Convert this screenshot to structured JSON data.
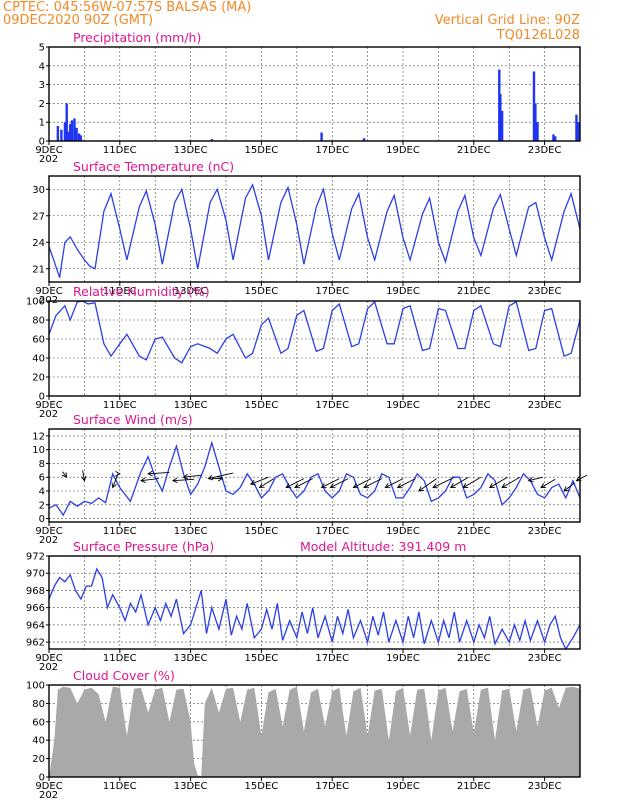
{
  "header": {
    "line1": "CPTEC:   045:56W-07:57S   BALSAS (MA)",
    "line2": "09DEC2020 90Z (GMT)",
    "grid_note": "Vertical Grid Line: 90Z",
    "run_code": "TQ0126L028"
  },
  "colors": {
    "header": "#f08a28",
    "panel_title": "#e0168f",
    "series": "#2b3fe6",
    "bars": "#1f35f0",
    "cloud": "#a9a9a9",
    "arrow": "#000000"
  },
  "x_axis": {
    "ticks": [
      "9DEC",
      "11DEC",
      "13DEC",
      "15DEC",
      "17DEC",
      "19DEC",
      "21DEC",
      "23DEC"
    ],
    "tick_days": [
      0,
      2,
      4,
      6,
      8,
      10,
      12,
      14
    ],
    "range_days": [
      0,
      15
    ],
    "year_fragment": "202"
  },
  "chart_data": [
    {
      "type": "bar",
      "title": "Precipitation  (mm/h)",
      "ylim": [
        0,
        5
      ],
      "yticks": [
        0,
        1,
        2,
        3,
        4,
        5
      ],
      "x": [
        0.25,
        0.35,
        0.45,
        0.5,
        0.55,
        0.6,
        0.65,
        0.72,
        0.78,
        0.85,
        0.9,
        4.6,
        7.7,
        8.9,
        12.72,
        12.75,
        12.8,
        13.7,
        13.74,
        13.8,
        14.25,
        14.3,
        14.9,
        14.95
      ],
      "values": [
        0.8,
        0.6,
        1.0,
        2.0,
        0.5,
        0.9,
        1.1,
        1.2,
        0.7,
        0.4,
        0.3,
        0.1,
        0.45,
        0.15,
        3.8,
        2.5,
        1.6,
        3.7,
        2.0,
        1.0,
        0.35,
        0.25,
        1.4,
        1.0
      ]
    },
    {
      "type": "line",
      "title": "Surface Temperature (nC)",
      "ylim": [
        19.5,
        31.5
      ],
      "yticks": [
        21,
        24,
        27,
        30
      ],
      "x": [
        0,
        0.15,
        0.3,
        0.45,
        0.6,
        0.8,
        1.0,
        1.15,
        1.3,
        1.55,
        1.75,
        2.0,
        2.2,
        2.55,
        2.75,
        3.0,
        3.2,
        3.55,
        3.75,
        4.0,
        4.2,
        4.55,
        4.75,
        5.0,
        5.2,
        5.55,
        5.75,
        6.0,
        6.2,
        6.55,
        6.75,
        7.0,
        7.2,
        7.55,
        7.75,
        8.0,
        8.2,
        8.55,
        8.75,
        9.0,
        9.2,
        9.55,
        9.75,
        10.0,
        10.2,
        10.55,
        10.75,
        11.0,
        11.2,
        11.55,
        11.75,
        12.0,
        12.2,
        12.55,
        12.75,
        13.0,
        13.2,
        13.55,
        13.75,
        14.0,
        14.2,
        14.55,
        14.75,
        15.0
      ],
      "series": [
        {
          "values": [
            23.5,
            21.8,
            20.0,
            24.0,
            24.6,
            23.2,
            22.0,
            21.3,
            21.0,
            27.5,
            29.5,
            25.5,
            22.0,
            28.0,
            29.8,
            26.0,
            21.5,
            28.5,
            30.0,
            25.5,
            21.0,
            28.5,
            30.0,
            26.5,
            22.0,
            29.0,
            30.5,
            27.0,
            22.0,
            28.5,
            30.2,
            26.0,
            21.5,
            28.0,
            30.0,
            25.0,
            22.0,
            27.8,
            29.5,
            24.5,
            22.0,
            27.5,
            29.3,
            24.5,
            22.0,
            27.2,
            29.0,
            24.0,
            21.8,
            27.5,
            29.3,
            24.5,
            22.5,
            27.8,
            29.4,
            25.5,
            22.5,
            28.0,
            28.5,
            24.5,
            22.0,
            27.5,
            29.5,
            25.5
          ]
        }
      ]
    },
    {
      "type": "line",
      "title": "Relative Humidity (%)",
      "ylim": [
        0,
        100
      ],
      "yticks": [
        0,
        20,
        40,
        60,
        80,
        100
      ],
      "x": [
        0,
        0.2,
        0.45,
        0.6,
        0.8,
        0.95,
        1.1,
        1.3,
        1.55,
        1.75,
        2.0,
        2.2,
        2.55,
        2.75,
        3.0,
        3.2,
        3.55,
        3.75,
        4.0,
        4.2,
        4.55,
        4.75,
        5.0,
        5.2,
        5.55,
        5.75,
        6.0,
        6.2,
        6.55,
        6.75,
        7.0,
        7.2,
        7.55,
        7.75,
        8.0,
        8.2,
        8.55,
        8.75,
        9.0,
        9.2,
        9.55,
        9.75,
        10.0,
        10.2,
        10.55,
        10.75,
        11.0,
        11.2,
        11.55,
        11.75,
        12.0,
        12.2,
        12.55,
        12.75,
        13.0,
        13.2,
        13.55,
        13.75,
        14.0,
        14.2,
        14.55,
        14.75,
        15.0
      ],
      "series": [
        {
          "values": [
            65,
            85,
            95,
            80,
            99,
            100,
            97,
            98,
            55,
            42,
            55,
            65,
            42,
            38,
            60,
            62,
            40,
            35,
            52,
            55,
            50,
            45,
            60,
            65,
            40,
            45,
            75,
            82,
            45,
            50,
            85,
            90,
            47,
            50,
            90,
            97,
            52,
            55,
            92,
            99,
            55,
            55,
            92,
            95,
            48,
            50,
            92,
            90,
            50,
            50,
            90,
            95,
            55,
            52,
            95,
            99,
            48,
            50,
            90,
            92,
            42,
            45,
            80
          ]
        }
      ]
    },
    {
      "type": "line",
      "title": "Surface Wind (m/s)",
      "ylim": [
        -0.5,
        13
      ],
      "yticks": [
        0,
        2,
        4,
        6,
        8,
        10,
        12
      ],
      "x": [
        0,
        0.2,
        0.4,
        0.6,
        0.8,
        1.0,
        1.2,
        1.4,
        1.6,
        1.8,
        2.0,
        2.3,
        2.6,
        2.8,
        3.0,
        3.2,
        3.4,
        3.6,
        3.8,
        4.0,
        4.2,
        4.4,
        4.6,
        4.8,
        5.0,
        5.2,
        5.4,
        5.6,
        5.8,
        6.0,
        6.2,
        6.4,
        6.6,
        6.8,
        7.0,
        7.2,
        7.4,
        7.6,
        7.8,
        8.0,
        8.2,
        8.4,
        8.6,
        8.8,
        9.0,
        9.2,
        9.4,
        9.6,
        9.8,
        10.0,
        10.2,
        10.4,
        10.6,
        10.8,
        11.0,
        11.2,
        11.4,
        11.6,
        11.8,
        12.0,
        12.2,
        12.4,
        12.6,
        12.8,
        13.0,
        13.2,
        13.4,
        13.6,
        13.8,
        14.0,
        14.2,
        14.4,
        14.6,
        14.8,
        15.0
      ],
      "series": [
        {
          "values": [
            1.5,
            2.0,
            0.5,
            2.5,
            1.8,
            2.5,
            2.2,
            3.0,
            2.3,
            6.5,
            4.5,
            2.5,
            6.8,
            9.0,
            6.0,
            4.0,
            7.5,
            10.5,
            6.5,
            3.5,
            5.0,
            7.5,
            11.0,
            7.5,
            4.0,
            3.5,
            4.5,
            6.5,
            5.0,
            3.0,
            4.0,
            6.0,
            6.5,
            4.5,
            3.0,
            4.0,
            6.0,
            6.5,
            4.0,
            3.0,
            4.0,
            6.5,
            6.0,
            3.5,
            3.0,
            4.0,
            6.5,
            6.0,
            3.0,
            3.0,
            4.5,
            6.5,
            5.5,
            2.5,
            3.0,
            4.0,
            6.0,
            6.0,
            3.0,
            3.5,
            4.5,
            6.5,
            5.5,
            2.0,
            3.0,
            4.5,
            6.5,
            5.5,
            3.5,
            3.0,
            4.5,
            5.0,
            3.0,
            5.5,
            3.0
          ]
        }
      ],
      "arrows": {
        "x": [
          0.5,
          1.0,
          1.8,
          2.0,
          2.6,
          2.8,
          3.5,
          3.8,
          4.5,
          4.9,
          5.7,
          5.95,
          6.7,
          6.95,
          7.7,
          7.95,
          8.6,
          8.9,
          9.5,
          9.85,
          10.45,
          10.85,
          11.35,
          11.7,
          12.45,
          12.8,
          13.55,
          13.9,
          14.55,
          14.9
        ],
        "y": [
          6,
          5.5,
          4.5,
          6.5,
          5.5,
          6.5,
          5.5,
          6,
          5.8,
          5.8,
          5.0,
          4.5,
          4.5,
          4.5,
          4.5,
          4.5,
          4.5,
          4.5,
          4.5,
          4.5,
          4.0,
          4.5,
          4.5,
          4.5,
          4.5,
          4.5,
          5.5,
          4.5,
          4.0,
          5.5
        ],
        "dx": [
          -0.12,
          -0.05,
          0.15,
          0.0,
          0.5,
          0.6,
          0.6,
          0.5,
          0.7,
          -0.3,
          0.5,
          0.4,
          0.5,
          0.5,
          0.5,
          0.5,
          0.5,
          0.5,
          0.5,
          0.5,
          0.5,
          0.6,
          0.5,
          0.5,
          0.5,
          0.5,
          0.4,
          0.4,
          0.3,
          0.3
        ],
        "dy": [
          0.8,
          1.5,
          2.0,
          0.0,
          0.3,
          0.2,
          0.2,
          0.3,
          0.8,
          0.0,
          1.0,
          1.3,
          1.3,
          1.3,
          1.3,
          1.3,
          1.3,
          1.3,
          1.3,
          1.3,
          1.8,
          1.5,
          1.5,
          1.5,
          1.5,
          1.5,
          0.5,
          1.2,
          1.2,
          0.8
        ]
      }
    },
    {
      "type": "line",
      "title": "Surface Pressure (hPa)",
      "annotation": "Model Altitude: 391.409  m",
      "ylim": [
        961.2,
        972
      ],
      "yticks": [
        962,
        964,
        966,
        968,
        970,
        972
      ],
      "x": [
        0,
        0.15,
        0.3,
        0.45,
        0.6,
        0.75,
        0.9,
        1.05,
        1.2,
        1.35,
        1.5,
        1.65,
        1.8,
        2.0,
        2.15,
        2.3,
        2.45,
        2.6,
        2.8,
        3.0,
        3.15,
        3.3,
        3.45,
        3.6,
        3.8,
        4.0,
        4.15,
        4.3,
        4.45,
        4.6,
        4.8,
        5.0,
        5.15,
        5.3,
        5.45,
        5.6,
        5.8,
        6.0,
        6.15,
        6.3,
        6.45,
        6.6,
        6.8,
        7.0,
        7.15,
        7.3,
        7.45,
        7.6,
        7.8,
        8.0,
        8.15,
        8.3,
        8.45,
        8.6,
        8.8,
        9.0,
        9.15,
        9.3,
        9.45,
        9.6,
        9.8,
        10.0,
        10.15,
        10.3,
        10.45,
        10.6,
        10.8,
        11.0,
        11.15,
        11.3,
        11.45,
        11.6,
        11.8,
        12.0,
        12.15,
        12.3,
        12.45,
        12.6,
        12.8,
        13.0,
        13.15,
        13.3,
        13.45,
        13.6,
        13.8,
        14.0,
        14.15,
        14.3,
        14.45,
        14.6,
        14.8,
        15.0
      ],
      "series": [
        {
          "values": [
            967.0,
            968.5,
            969.5,
            969.0,
            969.8,
            968.0,
            967.0,
            968.5,
            968.5,
            970.5,
            969.5,
            966.0,
            967.5,
            966.0,
            964.5,
            966.5,
            965.5,
            967.5,
            964.0,
            966.0,
            964.5,
            966.5,
            965.0,
            967.0,
            963.0,
            964.0,
            966.0,
            968.0,
            963.0,
            966.0,
            963.5,
            967.0,
            962.8,
            965.0,
            963.5,
            966.5,
            962.5,
            963.5,
            965.8,
            963.5,
            966.5,
            962.2,
            964.5,
            962.5,
            965.5,
            963.0,
            966.0,
            962.5,
            965.0,
            962.0,
            965.0,
            963.0,
            965.8,
            962.5,
            964.5,
            962.0,
            965.0,
            962.8,
            965.5,
            962.0,
            964.5,
            962.0,
            965.0,
            962.5,
            965.5,
            961.8,
            964.5,
            962.0,
            964.5,
            962.5,
            965.5,
            962.0,
            964.5,
            962.0,
            964.0,
            962.5,
            965.0,
            961.8,
            963.5,
            962.0,
            964.0,
            962.2,
            964.5,
            962.2,
            964.5,
            962.0,
            964.0,
            965.0,
            962.5,
            961.2,
            962.5,
            964.0
          ]
        }
      ]
    },
    {
      "type": "area",
      "title": "Cloud Cover (%)",
      "ylim": [
        0,
        100
      ],
      "yticks": [
        0,
        20,
        40,
        60,
        80,
        100
      ],
      "x": [
        0,
        0.15,
        0.25,
        0.4,
        0.6,
        0.8,
        1.0,
        1.2,
        1.4,
        1.6,
        1.8,
        2.0,
        2.2,
        2.4,
        2.6,
        2.8,
        3.0,
        3.2,
        3.4,
        3.6,
        3.8,
        4.0,
        4.1,
        4.2,
        4.3,
        4.4,
        4.6,
        4.8,
        5.0,
        5.2,
        5.4,
        5.6,
        5.8,
        6.0,
        6.2,
        6.4,
        6.6,
        6.8,
        7.0,
        7.2,
        7.4,
        7.6,
        7.8,
        8.0,
        8.2,
        8.4,
        8.6,
        8.8,
        9.0,
        9.2,
        9.4,
        9.6,
        9.8,
        10.0,
        10.2,
        10.4,
        10.6,
        10.8,
        11.0,
        11.2,
        11.4,
        11.6,
        11.8,
        12.0,
        12.2,
        12.4,
        12.6,
        12.8,
        13.0,
        13.2,
        13.4,
        13.6,
        13.8,
        14.0,
        14.2,
        14.4,
        14.6,
        14.8,
        15.0
      ],
      "values": [
        0,
        40,
        95,
        98,
        97,
        80,
        95,
        97,
        90,
        60,
        98,
        97,
        45,
        96,
        97,
        70,
        95,
        97,
        60,
        95,
        96,
        60,
        15,
        2,
        1,
        80,
        97,
        70,
        96,
        97,
        60,
        95,
        97,
        45,
        92,
        96,
        55,
        95,
        98,
        50,
        92,
        96,
        55,
        93,
        97,
        45,
        93,
        97,
        45,
        94,
        96,
        40,
        93,
        97,
        45,
        95,
        96,
        40,
        94,
        97,
        50,
        93,
        96,
        48,
        95,
        97,
        40,
        94,
        96,
        50,
        95,
        97,
        55,
        94,
        97,
        75,
        97,
        98,
        96
      ]
    }
  ]
}
